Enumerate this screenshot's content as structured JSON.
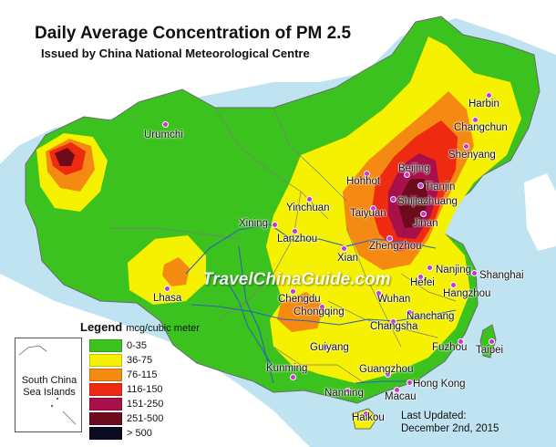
{
  "title": "Daily Average Concentration of PM 2.5",
  "subtitle": "Issued by China National Meteorological Centre",
  "watermark": "TravelChinaGuide.com",
  "legend": {
    "title": "Legend",
    "unit": "mcg/cubic meter",
    "items": [
      {
        "label": "0-35",
        "color": "#3cc21e"
      },
      {
        "label": "36-75",
        "color": "#f5f100"
      },
      {
        "label": "76-115",
        "color": "#f58a12"
      },
      {
        "label": "116-150",
        "color": "#ee2a10"
      },
      {
        "label": "151-250",
        "color": "#a8104a"
      },
      {
        "label": "251-500",
        "color": "#6d0a1c"
      },
      {
        "label": "> 500",
        "color": "#0b0b22"
      }
    ]
  },
  "inset": {
    "line1": "South China",
    "line2": "Sea Islands"
  },
  "updated": {
    "line1": "Last Updated:",
    "line2": "December 2nd, 2015"
  },
  "colors": {
    "sea": "#bfe3f1",
    "land_outside": "#ffffff",
    "city_marker": "#d22ed3",
    "river": "#2d63b8",
    "border": "#6a6a6a"
  },
  "cities": [
    {
      "name": "Urumchi"
    },
    {
      "name": "Harbin"
    },
    {
      "name": "Changchun"
    },
    {
      "name": "Shenyang"
    },
    {
      "name": "Beijing"
    },
    {
      "name": "Tianjin"
    },
    {
      "name": "Hohhot"
    },
    {
      "name": "Shijiazhuang"
    },
    {
      "name": "Yinchuan"
    },
    {
      "name": "Taiyuan"
    },
    {
      "name": "Jinan"
    },
    {
      "name": "Xining"
    },
    {
      "name": "Lanzhou"
    },
    {
      "name": "Zhengzhou"
    },
    {
      "name": "Xian"
    },
    {
      "name": "Lhasa"
    },
    {
      "name": "Nanjing"
    },
    {
      "name": "Shanghai"
    },
    {
      "name": "Hefei"
    },
    {
      "name": "Hangzhou"
    },
    {
      "name": "Chengdu"
    },
    {
      "name": "Chongqing"
    },
    {
      "name": "Wuhan"
    },
    {
      "name": "Changsha"
    },
    {
      "name": "Nanchang"
    },
    {
      "name": "Fuzhou"
    },
    {
      "name": "Taipei"
    },
    {
      "name": "Guiyang"
    },
    {
      "name": "Kunming"
    },
    {
      "name": "Guangzhou"
    },
    {
      "name": "Nanning"
    },
    {
      "name": "Hong Kong"
    },
    {
      "name": "Macau"
    },
    {
      "name": "Haikou"
    }
  ]
}
